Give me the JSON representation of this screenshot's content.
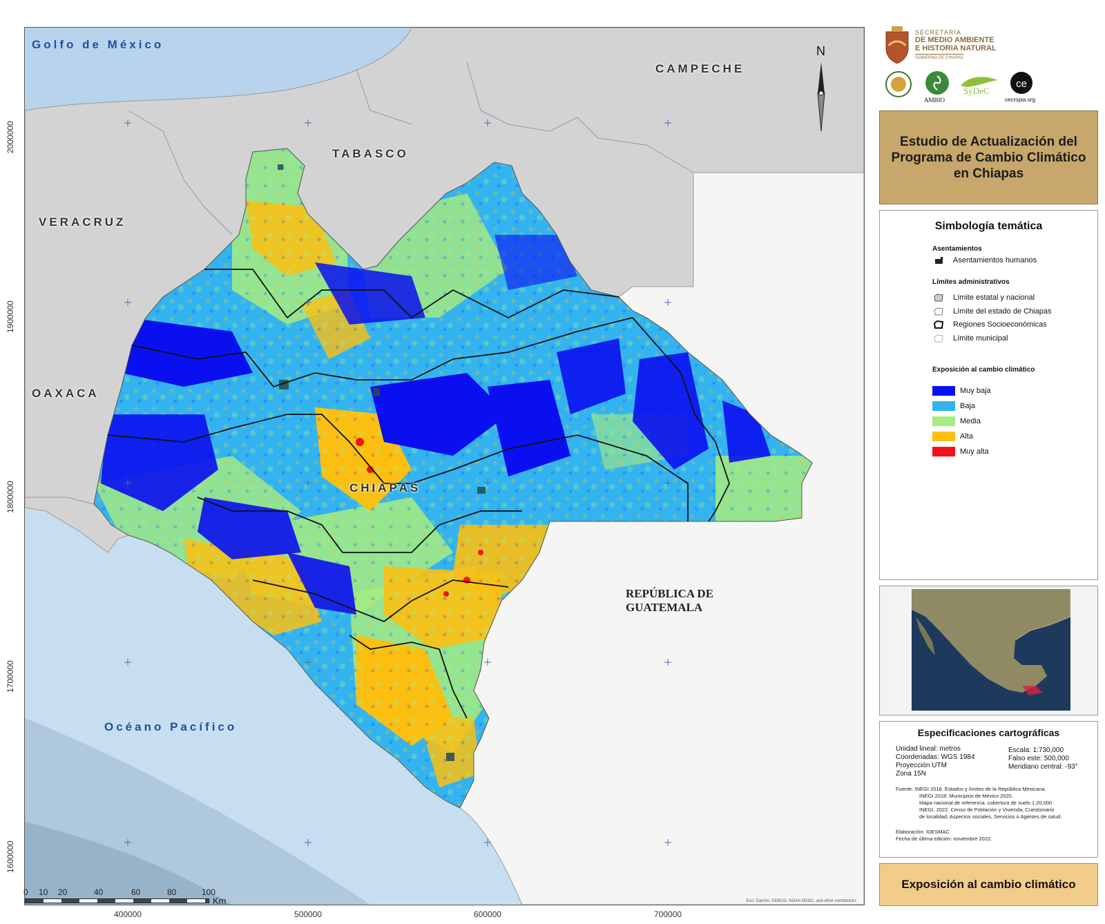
{
  "header": {
    "agency": [
      "SECRETARÍA",
      "DE MEDIO AMBIENTE",
      "E HISTORIA NATURAL"
    ],
    "government": "GOBIERNO DE CHIAPAS",
    "partner_logos": [
      "AMBIO",
      "SyDeC",
      "cecropia.org"
    ]
  },
  "title": "Estudio de Actualización del\nPrograma de Cambio Climático\nen Chiapas",
  "map": {
    "north_label": "N",
    "y_ticks": [
      "2000000",
      "1900000",
      "1800000",
      "1700000",
      "1600000"
    ],
    "x_ticks": [
      "400000",
      "500000",
      "600000",
      "700000"
    ],
    "scale_labels": [
      "0",
      "10",
      "20",
      "40",
      "60",
      "80",
      "100"
    ],
    "scale_unit": "Km",
    "attribution": "Esri, Garmin, GEBCO, NOAA NGDC, and other contributors",
    "places": {
      "gulf": "Golfo de México",
      "campeche": "CAMPECHE",
      "tabasco": "TABASCO",
      "veracruz": "VERACRUZ",
      "oaxaca": "OAXACA",
      "chiapas": "CHIAPAS",
      "guatemala": "REPÚBLICA DE\nGUATEMALA",
      "pacific": "Océano Pacífico"
    },
    "exposure_colors": {
      "muy_baja": "#0a0ff0",
      "baja": "#33b4f0",
      "media": "#a6ec80",
      "alta": "#fbbf12",
      "muy_alta": "#f2131a"
    }
  },
  "legend": {
    "title": "Simbología temática",
    "settlements_heading": "Asentamientos",
    "settlements_item": "Asentamientos humanos",
    "admin_heading": "Límites administrativos",
    "admin_items": [
      "Límite estatal y nacional",
      "Límite del estado de Chiapas",
      "Regiones Socioeconómicas",
      "Límite municipal"
    ],
    "exposure_heading": "Exposición al cambio climático",
    "exposure_items": [
      {
        "label": "Muy baja",
        "color": "#0a0ff0"
      },
      {
        "label": "Baja",
        "color": "#33b4f0"
      },
      {
        "label": "Media",
        "color": "#a6ec80"
      },
      {
        "label": "Alta",
        "color": "#fbbf12"
      },
      {
        "label": "Muy alta",
        "color": "#f2131a"
      }
    ]
  },
  "specs": {
    "title": "Especificaciones cartográficas",
    "left": [
      "Unidad lineal: metros",
      "Coordenadas: WGS 1984",
      "Proyección UTM",
      "Zona 15N"
    ],
    "right": [
      "Escala: 1:730,000",
      "Falso este: 500,000",
      "Meridiano central: -93°"
    ],
    "sources": [
      "Fuente: INEGI 2018. Estados y límites de la República Mexicana.",
      "INEGI 2018. Municipios de México 2020.",
      "Mapa nacional de referencia. cobertura de suelo 1:20,000",
      "INEGI. 2022. Censo de Población y Vivienda, Cuestionario",
      "de localidad, Aspectos sociales, Servicios o Agentes de salud."
    ],
    "made_by": "Elaboración: IDESMAC",
    "edited": "Fecha de última edición: noviembre 2022."
  },
  "footer": "Exposición al cambio climático"
}
